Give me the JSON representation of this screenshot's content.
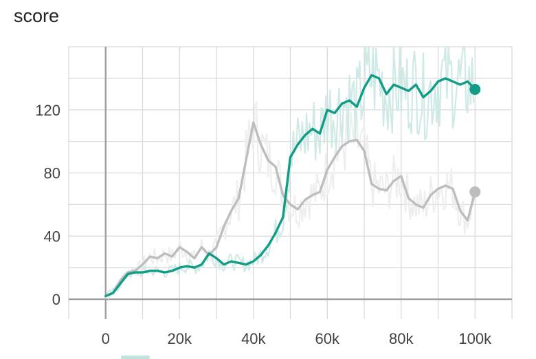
{
  "chart_data": {
    "type": "line",
    "title": "score",
    "xlabel": "",
    "ylabel": "",
    "xlim": [
      -10000,
      110000
    ],
    "ylim": [
      -10,
      160
    ],
    "x_ticks": [
      0,
      20000,
      40000,
      60000,
      80000,
      100000
    ],
    "x_tick_labels": [
      "0",
      "20k",
      "40k",
      "60k",
      "80k",
      "100k"
    ],
    "y_ticks": [
      0,
      40,
      80,
      120
    ],
    "y_tick_labels": [
      "0",
      "40",
      "80",
      "120"
    ],
    "grid": true,
    "series": [
      {
        "color": "#bdbdbd",
        "raw_color": "#eeeeee",
        "x": [
          0,
          2000,
          4000,
          6000,
          8000,
          10000,
          12000,
          14000,
          16000,
          18000,
          20000,
          22000,
          24000,
          26000,
          28000,
          30000,
          32000,
          34000,
          36000,
          38000,
          40000,
          42000,
          44000,
          46000,
          48000,
          50000,
          52000,
          54000,
          56000,
          58000,
          60000,
          62000,
          64000,
          66000,
          68000,
          70000,
          72000,
          74000,
          76000,
          78000,
          80000,
          82000,
          84000,
          86000,
          88000,
          90000,
          92000,
          94000,
          96000,
          98000,
          100000
        ],
        "y": [
          2,
          4,
          12,
          17,
          18,
          22,
          27,
          26,
          29,
          27,
          33,
          30,
          26,
          33,
          28,
          33,
          46,
          56,
          64,
          88,
          112,
          98,
          88,
          84,
          66,
          60,
          57,
          63,
          66,
          68,
          82,
          90,
          97,
          100,
          101,
          94,
          73,
          70,
          69,
          75,
          78,
          64,
          60,
          58,
          66,
          70,
          72,
          70,
          56,
          50,
          68
        ]
      },
      {
        "color": "#129c85",
        "raw_color": "#cfeae6",
        "x": [
          0,
          2000,
          4000,
          6000,
          8000,
          10000,
          12000,
          14000,
          16000,
          18000,
          20000,
          22000,
          24000,
          26000,
          28000,
          30000,
          32000,
          34000,
          36000,
          38000,
          40000,
          42000,
          44000,
          46000,
          48000,
          50000,
          52000,
          54000,
          56000,
          58000,
          60000,
          62000,
          64000,
          66000,
          68000,
          70000,
          72000,
          74000,
          76000,
          78000,
          80000,
          82000,
          84000,
          86000,
          88000,
          90000,
          92000,
          94000,
          96000,
          98000,
          100000
        ],
        "y": [
          2,
          4,
          10,
          16,
          17,
          17,
          18,
          18,
          17,
          18,
          20,
          21,
          20,
          22,
          29,
          26,
          22,
          24,
          23,
          22,
          24,
          28,
          34,
          42,
          52,
          90,
          98,
          104,
          108,
          105,
          120,
          118,
          124,
          126,
          122,
          134,
          142,
          140,
          130,
          136,
          134,
          132,
          136,
          128,
          132,
          138,
          140,
          138,
          136,
          138,
          133
        ]
      }
    ]
  }
}
